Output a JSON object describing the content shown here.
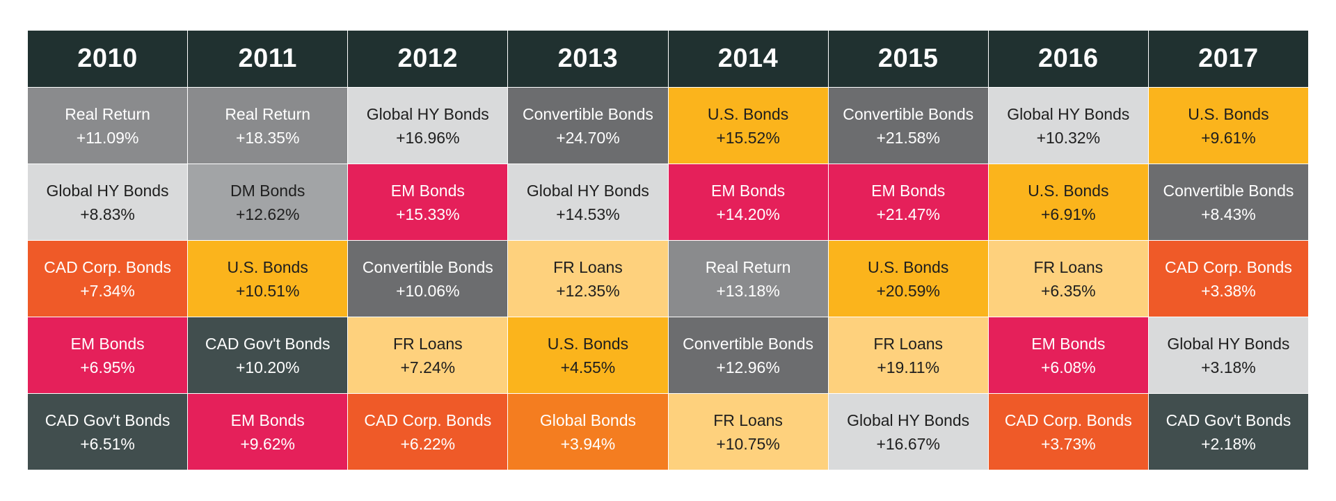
{
  "chart_data": {
    "type": "table",
    "title": "",
    "years": [
      "2010",
      "2011",
      "2012",
      "2013",
      "2014",
      "2015",
      "2016",
      "2017"
    ],
    "asset_colors": {
      "Real Return": {
        "bg": "#8a8b8d",
        "fg": "#ffffff"
      },
      "Global HY Bonds": {
        "bg": "#d9dadb",
        "fg": "#1e1e1e"
      },
      "CAD Corp. Bonds": {
        "bg": "#ef5a28",
        "fg": "#ffffff"
      },
      "EM Bonds": {
        "bg": "#e5205a",
        "fg": "#ffffff"
      },
      "CAD Gov't Bonds": {
        "bg": "#414e4e",
        "fg": "#ffffff"
      },
      "DM Bonds": {
        "bg": "#a2a4a6",
        "fg": "#1e1e1e"
      },
      "U.S. Bonds": {
        "bg": "#fbb41c",
        "fg": "#1e1e1e"
      },
      "Convertible Bonds": {
        "bg": "#6c6d6f",
        "fg": "#ffffff"
      },
      "FR Loans": {
        "bg": "#fed17d",
        "fg": "#1e1e1e"
      },
      "Global Bonds": {
        "bg": "#f47d20",
        "fg": "#ffffff"
      }
    },
    "columns": [
      {
        "year": "2010",
        "cells": [
          {
            "asset": "Real Return",
            "return": "+11.09%"
          },
          {
            "asset": "Global HY Bonds",
            "return": "+8.83%"
          },
          {
            "asset": "CAD Corp. Bonds",
            "return": "+7.34%"
          },
          {
            "asset": "EM Bonds",
            "return": "+6.95%"
          },
          {
            "asset": "CAD Gov't Bonds",
            "return": "+6.51%"
          }
        ]
      },
      {
        "year": "2011",
        "cells": [
          {
            "asset": "Real Return",
            "return": "+18.35%"
          },
          {
            "asset": "DM Bonds",
            "return": "+12.62%"
          },
          {
            "asset": "U.S. Bonds",
            "return": "+10.51%"
          },
          {
            "asset": "CAD Gov't Bonds",
            "return": "+10.20%"
          },
          {
            "asset": "EM Bonds",
            "return": "+9.62%"
          }
        ]
      },
      {
        "year": "2012",
        "cells": [
          {
            "asset": "Global HY Bonds",
            "return": "+16.96%"
          },
          {
            "asset": "EM Bonds",
            "return": "+15.33%"
          },
          {
            "asset": "Convertible Bonds",
            "return": "+10.06%"
          },
          {
            "asset": "FR Loans",
            "return": "+7.24%"
          },
          {
            "asset": "CAD Corp. Bonds",
            "return": "+6.22%"
          }
        ]
      },
      {
        "year": "2013",
        "cells": [
          {
            "asset": "Convertible Bonds",
            "return": "+24.70%"
          },
          {
            "asset": "Global HY Bonds",
            "return": "+14.53%"
          },
          {
            "asset": "FR Loans",
            "return": "+12.35%"
          },
          {
            "asset": "U.S. Bonds",
            "return": "+4.55%"
          },
          {
            "asset": "Global Bonds",
            "return": "+3.94%"
          }
        ]
      },
      {
        "year": "2014",
        "cells": [
          {
            "asset": "U.S. Bonds",
            "return": "+15.52%"
          },
          {
            "asset": "EM Bonds",
            "return": "+14.20%"
          },
          {
            "asset": "Real Return",
            "return": "+13.18%"
          },
          {
            "asset": "Convertible Bonds",
            "return": "+12.96%"
          },
          {
            "asset": "FR Loans",
            "return": "+10.75%"
          }
        ]
      },
      {
        "year": "2015",
        "cells": [
          {
            "asset": "Convertible Bonds",
            "return": "+21.58%"
          },
          {
            "asset": "EM Bonds",
            "return": "+21.47%"
          },
          {
            "asset": "U.S. Bonds",
            "return": "+20.59%"
          },
          {
            "asset": "FR Loans",
            "return": "+19.11%"
          },
          {
            "asset": "Global HY Bonds",
            "return": "+16.67%"
          }
        ]
      },
      {
        "year": "2016",
        "cells": [
          {
            "asset": "Global HY Bonds",
            "return": "+10.32%"
          },
          {
            "asset": "U.S. Bonds",
            "return": "+6.91%"
          },
          {
            "asset": "FR Loans",
            "return": "+6.35%"
          },
          {
            "asset": "EM Bonds",
            "return": "+6.08%"
          },
          {
            "asset": "CAD Corp. Bonds",
            "return": "+3.73%"
          }
        ]
      },
      {
        "year": "2017",
        "cells": [
          {
            "asset": "U.S. Bonds",
            "return": "+9.61%"
          },
          {
            "asset": "Convertible Bonds",
            "return": "+8.43%"
          },
          {
            "asset": "CAD Corp. Bonds",
            "return": "+3.38%"
          },
          {
            "asset": "Global HY Bonds",
            "return": "+3.18%"
          },
          {
            "asset": "CAD Gov't Bonds",
            "return": "+2.18%"
          }
        ]
      }
    ]
  }
}
